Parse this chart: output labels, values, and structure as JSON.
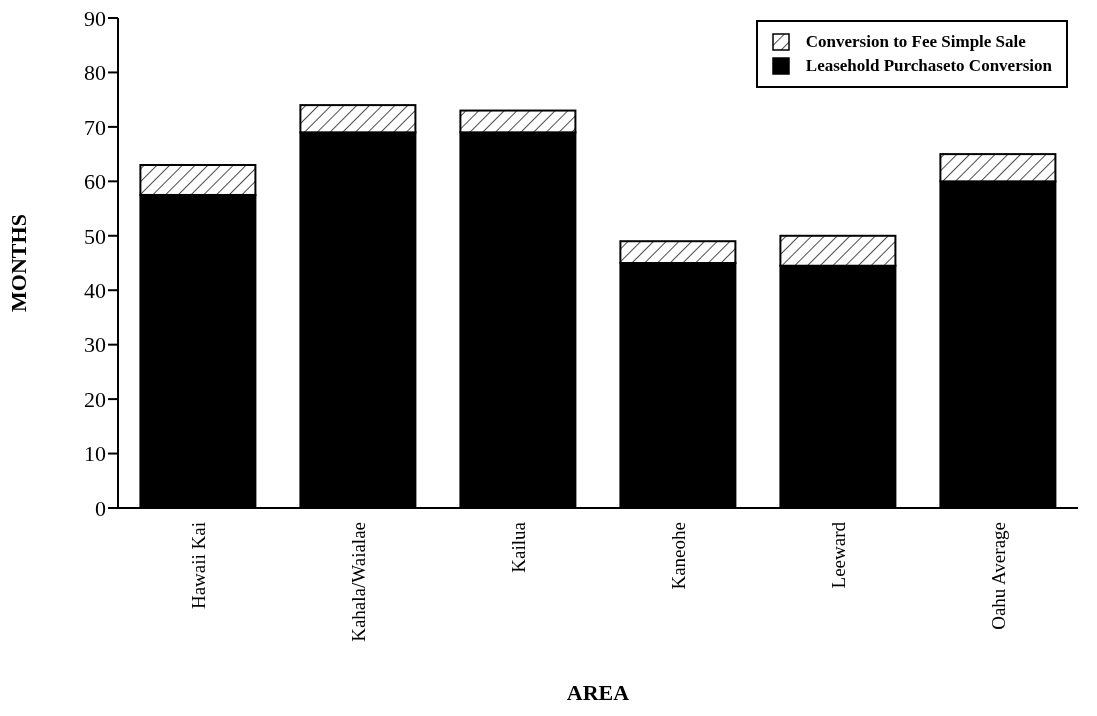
{
  "chart_data": {
    "type": "bar",
    "stacked": true,
    "xlabel": "AREA",
    "ylabel": "MONTHS",
    "categories": [
      "Hawaii  Kai",
      "Kahala/Waialae",
      "Kailua",
      "Kaneohe",
      "Leeward",
      "Oahu  Average"
    ],
    "series": [
      {
        "name": "Leasehold Purchaseto Conversion",
        "color": "#000000",
        "values": [
          57.5,
          69,
          69,
          45,
          44.5,
          60
        ]
      },
      {
        "name": "Conversion to Fee Simple Sale",
        "color": "#ffffff",
        "values": [
          5.5,
          5,
          4,
          4,
          5.5,
          5
        ]
      }
    ],
    "ylim": [
      0,
      90
    ],
    "yticks": [
      0,
      10,
      20,
      30,
      40,
      50,
      60,
      70,
      80,
      90
    ],
    "grid": false,
    "legend": "top right"
  }
}
